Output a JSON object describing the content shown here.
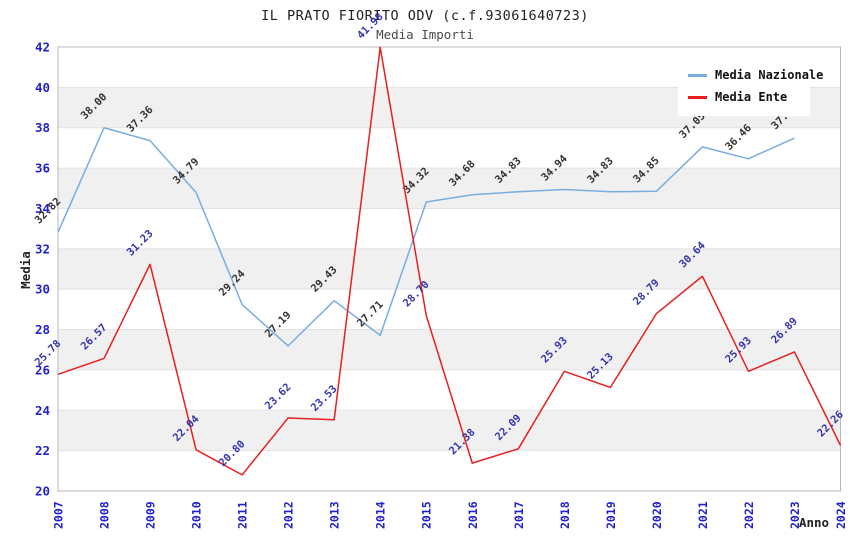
{
  "header": {
    "title": "IL PRATO FIORITO ODV (c.f.93061640723)",
    "subtitle": "Media Importi"
  },
  "legend": {
    "items": [
      {
        "label": "Media Nazionale",
        "color": "#79ade0"
      },
      {
        "label": "Media Ente",
        "color": "#e62020"
      }
    ]
  },
  "chart_data": {
    "type": "line",
    "title": "IL PRATO FIORITO ODV (c.f.93061640723)",
    "subtitle": "Media Importi",
    "xlabel": "Anno",
    "ylabel": "Media",
    "x": [
      2007,
      2008,
      2009,
      2010,
      2011,
      2012,
      2013,
      2014,
      2015,
      2016,
      2017,
      2018,
      2019,
      2020,
      2021,
      2022,
      2023,
      2024
    ],
    "ylim": [
      20,
      42
    ],
    "ytick_step": 2,
    "grid": "alternating-horizontal-bands",
    "legend_position": "top-right",
    "series": [
      {
        "name": "Media Nazionale",
        "color": "#79ade0",
        "label_color": "#333333",
        "x": [
          2007,
          2008,
          2009,
          2010,
          2011,
          2012,
          2013,
          2014,
          2015,
          2016,
          2017,
          2018,
          2019,
          2020,
          2021,
          2022,
          2023
        ],
        "values": [
          32.82,
          38.0,
          37.36,
          34.79,
          29.24,
          27.19,
          29.43,
          27.71,
          34.32,
          34.68,
          34.83,
          34.94,
          34.83,
          34.85,
          37.05,
          36.46,
          37.49
        ]
      },
      {
        "name": "Media Ente",
        "color": "#e62020",
        "label_color": "#3434ad",
        "x": [
          2007,
          2008,
          2009,
          2010,
          2011,
          2012,
          2013,
          2014,
          2015,
          2016,
          2017,
          2018,
          2019,
          2020,
          2021,
          2022,
          2023,
          2024
        ],
        "values": [
          25.78,
          26.57,
          31.23,
          22.04,
          20.8,
          23.62,
          23.53,
          41.98,
          28.7,
          21.38,
          22.09,
          25.93,
          25.13,
          28.79,
          30.64,
          25.93,
          26.89,
          22.26
        ]
      }
    ],
    "styles": {
      "tick_color": "#2222cc",
      "axis_title_color": "#222222",
      "band_color": "#f0f0f0",
      "boundary_line_color": "#e2e2e2",
      "border_color": "#b8b8b8"
    }
  }
}
